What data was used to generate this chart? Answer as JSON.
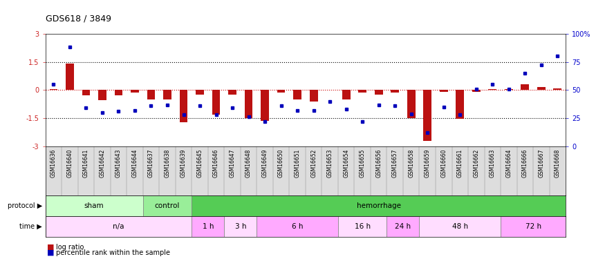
{
  "title": "GDS618 / 3849",
  "samples": [
    "GSM16636",
    "GSM16640",
    "GSM16641",
    "GSM16642",
    "GSM16643",
    "GSM16644",
    "GSM16637",
    "GSM16638",
    "GSM16639",
    "GSM16645",
    "GSM16646",
    "GSM16647",
    "GSM16648",
    "GSM16649",
    "GSM16650",
    "GSM16651",
    "GSM16652",
    "GSM16653",
    "GSM16654",
    "GSM16655",
    "GSM16656",
    "GSM16657",
    "GSM16658",
    "GSM16659",
    "GSM16660",
    "GSM16661",
    "GSM16662",
    "GSM16663",
    "GSM16664",
    "GSM16666",
    "GSM16667",
    "GSM16668"
  ],
  "log_ratio": [
    0.05,
    1.4,
    -0.3,
    -0.55,
    -0.3,
    -0.15,
    -0.5,
    -0.5,
    -1.7,
    -0.25,
    -1.3,
    -0.25,
    -1.5,
    -1.65,
    -0.15,
    -0.5,
    -0.6,
    0.0,
    -0.5,
    -0.15,
    -0.25,
    -0.15,
    -1.5,
    -2.7,
    -0.1,
    -1.55,
    -0.1,
    0.05,
    0.05,
    0.3,
    0.15,
    0.1
  ],
  "percentile": [
    55,
    88,
    34,
    30,
    31,
    32,
    36,
    37,
    28,
    36,
    28,
    34,
    26,
    22,
    36,
    32,
    32,
    40,
    33,
    22,
    37,
    36,
    29,
    12,
    35,
    28,
    51,
    55,
    51,
    65,
    72,
    80
  ],
  "protocol_groups": [
    {
      "label": "sham",
      "start": 0,
      "end": 5,
      "color": "#ccffcc"
    },
    {
      "label": "control",
      "start": 6,
      "end": 8,
      "color": "#99ee99"
    },
    {
      "label": "hemorrhage",
      "start": 9,
      "end": 31,
      "color": "#55cc55"
    }
  ],
  "time_groups": [
    {
      "label": "n/a",
      "start": 0,
      "end": 8,
      "color": "#ffddff"
    },
    {
      "label": "1 h",
      "start": 9,
      "end": 10,
      "color": "#ffaaff"
    },
    {
      "label": "3 h",
      "start": 11,
      "end": 12,
      "color": "#ffddff"
    },
    {
      "label": "6 h",
      "start": 13,
      "end": 17,
      "color": "#ffaaff"
    },
    {
      "label": "16 h",
      "start": 18,
      "end": 20,
      "color": "#ffddff"
    },
    {
      "label": "24 h",
      "start": 21,
      "end": 22,
      "color": "#ffaaff"
    },
    {
      "label": "48 h",
      "start": 23,
      "end": 27,
      "color": "#ffddff"
    },
    {
      "label": "72 h",
      "start": 28,
      "end": 31,
      "color": "#ffaaff"
    }
  ],
  "ylim": [
    -3,
    3
  ],
  "y2lim": [
    0,
    100
  ],
  "bar_color": "#bb1111",
  "dot_color": "#0000bb",
  "dotline_color": "#cc0000",
  "bg_color": "#ffffff",
  "tick_label_color": "#cc2222",
  "y2_tick_color": "#0000cc",
  "xlabel_bg": "#dddddd"
}
